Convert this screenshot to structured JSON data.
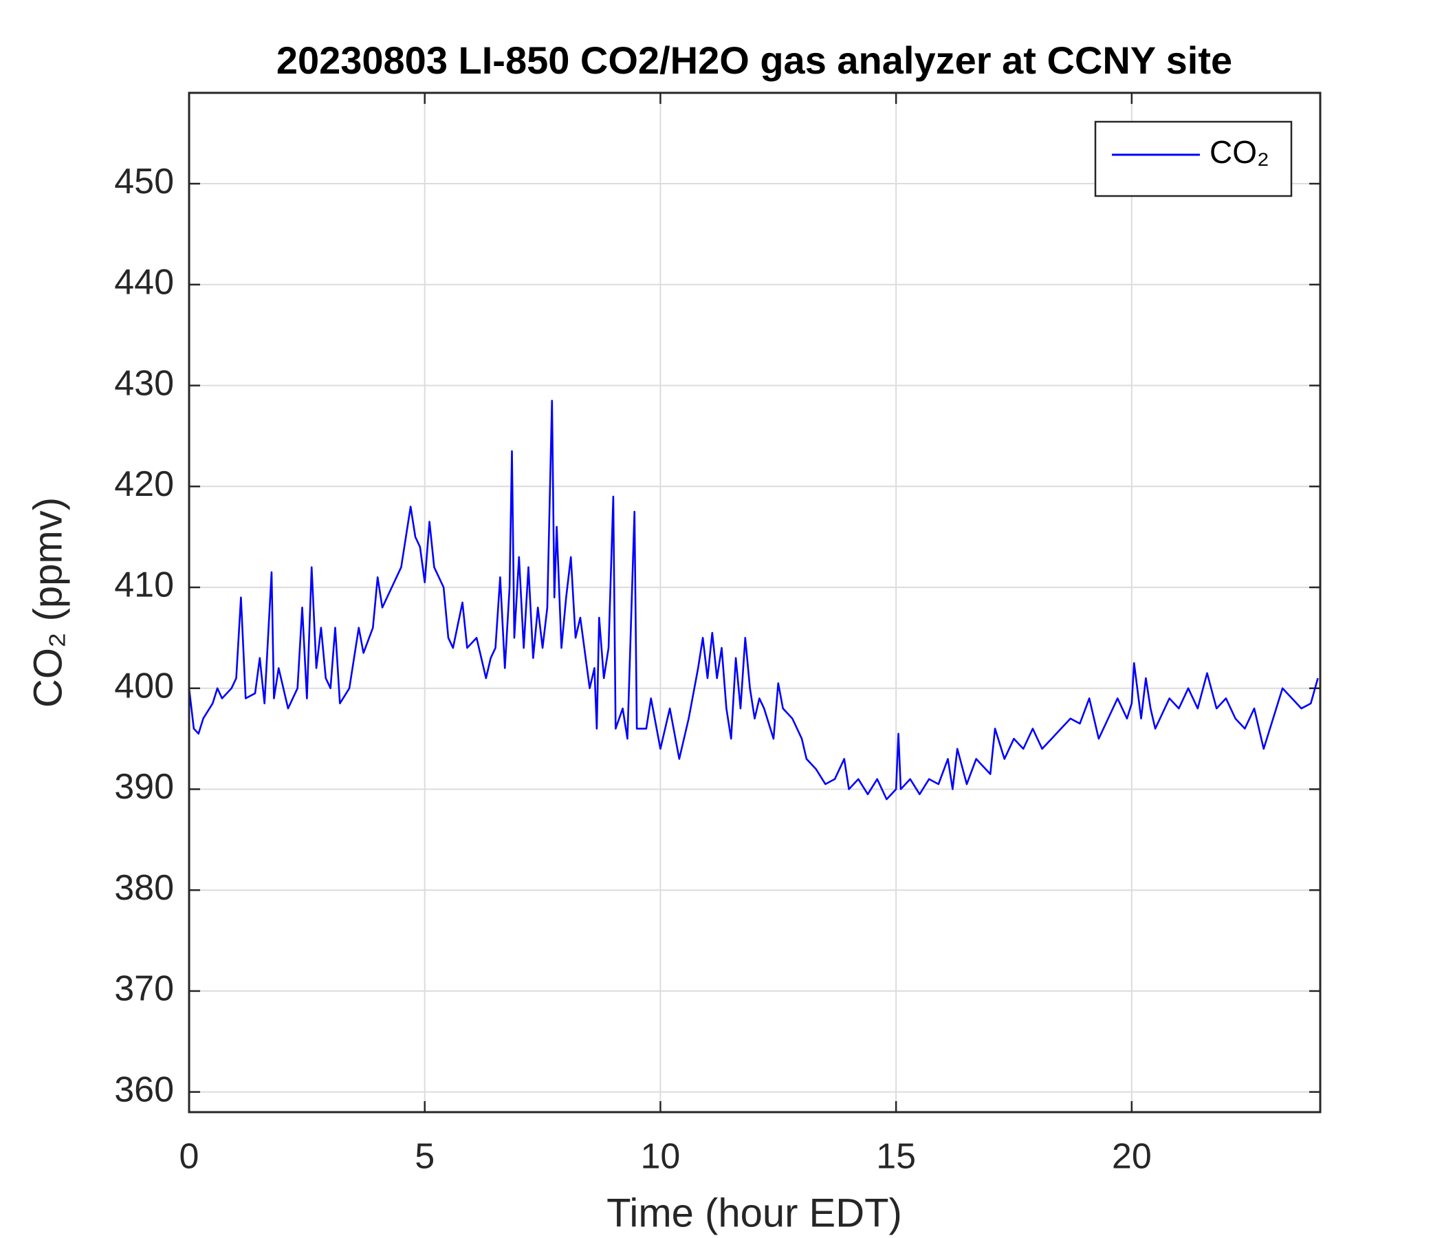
{
  "chart_data": {
    "type": "line",
    "title": "20230803 LI-850 CO2/H2O gas analyzer at CCNY site",
    "x_label": "Time (hour EDT)",
    "y_label": "CO₂ (ppmv)",
    "xlim": [
      0,
      24
    ],
    "xticks": [
      0,
      5,
      10,
      15,
      20
    ],
    "ylim": [
      358,
      459
    ],
    "yticks": [
      360,
      370,
      380,
      390,
      400,
      410,
      420,
      430,
      440,
      450
    ],
    "grid": true,
    "legend": "top-right",
    "x": [
      0,
      0.1,
      0.2,
      0.3,
      0.5,
      0.6,
      0.7,
      0.9,
      1.0,
      1.1,
      1.2,
      1.4,
      1.5,
      1.6,
      1.75,
      1.8,
      1.9,
      2.1,
      2.3,
      2.4,
      2.5,
      2.6,
      2.7,
      2.8,
      2.9,
      3.0,
      3.1,
      3.2,
      3.4,
      3.6,
      3.7,
      3.9,
      4.0,
      4.1,
      4.3,
      4.5,
      4.6,
      4.7,
      4.8,
      4.9,
      5.0,
      5.1,
      5.2,
      5.4,
      5.5,
      5.6,
      5.8,
      5.9,
      6.1,
      6.3,
      6.4,
      6.5,
      6.6,
      6.7,
      6.8,
      6.85,
      6.9,
      7.0,
      7.1,
      7.2,
      7.3,
      7.4,
      7.5,
      7.6,
      7.7,
      7.75,
      7.8,
      7.9,
      8.0,
      8.1,
      8.2,
      8.3,
      8.5,
      8.6,
      8.65,
      8.7,
      8.8,
      8.9,
      9.0,
      9.05,
      9.2,
      9.3,
      9.45,
      9.5,
      9.7,
      9.8,
      10.0,
      10.2,
      10.4,
      10.6,
      10.8,
      10.9,
      11.0,
      11.1,
      11.2,
      11.3,
      11.4,
      11.5,
      11.6,
      11.7,
      11.8,
      11.9,
      12.0,
      12.1,
      12.2,
      12.4,
      12.5,
      12.6,
      12.8,
      13.0,
      13.1,
      13.3,
      13.5,
      13.7,
      13.9,
      14.0,
      14.2,
      14.4,
      14.6,
      14.8,
      15.0,
      15.05,
      15.1,
      15.3,
      15.5,
      15.7,
      15.9,
      16.1,
      16.2,
      16.3,
      16.5,
      16.7,
      16.9,
      17.0,
      17.1,
      17.3,
      17.5,
      17.7,
      17.9,
      18.1,
      18.3,
      18.5,
      18.7,
      18.9,
      19.1,
      19.3,
      19.5,
      19.7,
      19.9,
      20.0,
      20.05,
      20.2,
      20.3,
      20.4,
      20.5,
      20.6,
      20.8,
      21.0,
      21.2,
      21.4,
      21.6,
      21.8,
      22.0,
      22.2,
      22.4,
      22.6,
      22.8,
      23.0,
      23.2,
      23.4,
      23.6,
      23.8,
      23.95
    ],
    "series": [
      {
        "name": "CO₂",
        "color": "#0000ff",
        "values": [
          400,
          396,
          395.5,
          397,
          398.5,
          400,
          399,
          400,
          401,
          409,
          399,
          399.5,
          403,
          398.5,
          411.5,
          399,
          402,
          398,
          400,
          408,
          399,
          412,
          402,
          406,
          401,
          400,
          406,
          398.5,
          400,
          406,
          403.5,
          406,
          411,
          408,
          410,
          412,
          415,
          418,
          415,
          414,
          410.5,
          416.5,
          412,
          410,
          405,
          404,
          408.5,
          404,
          405,
          401,
          403,
          404,
          411,
          402,
          410,
          423.5,
          405,
          413,
          404,
          412,
          403,
          408,
          404,
          408,
          428.5,
          409,
          416,
          404,
          409,
          413,
          405,
          407,
          400,
          402,
          396,
          407,
          401,
          404,
          419,
          396,
          398,
          395,
          417.5,
          396,
          396,
          399,
          394,
          398,
          393,
          397,
          402,
          405,
          401,
          405.5,
          401,
          404,
          398,
          395,
          403,
          398,
          405,
          400,
          397,
          399,
          398,
          395,
          400.5,
          398,
          397,
          395,
          393,
          392,
          390.5,
          391,
          393,
          390,
          391,
          389.5,
          391,
          389,
          390,
          395.5,
          390,
          391,
          389.5,
          391,
          390.5,
          393,
          390,
          394,
          390.5,
          393,
          392,
          391.5,
          396,
          393,
          395,
          394,
          396,
          394,
          395,
          396,
          397,
          396.5,
          399,
          395,
          397,
          399,
          397,
          398.5,
          402.5,
          397,
          401,
          398,
          396,
          397,
          399,
          398,
          400,
          398,
          401.5,
          398,
          399,
          397,
          396,
          398,
          394,
          397,
          400,
          399,
          398,
          398.5,
          401
        ]
      }
    ]
  }
}
